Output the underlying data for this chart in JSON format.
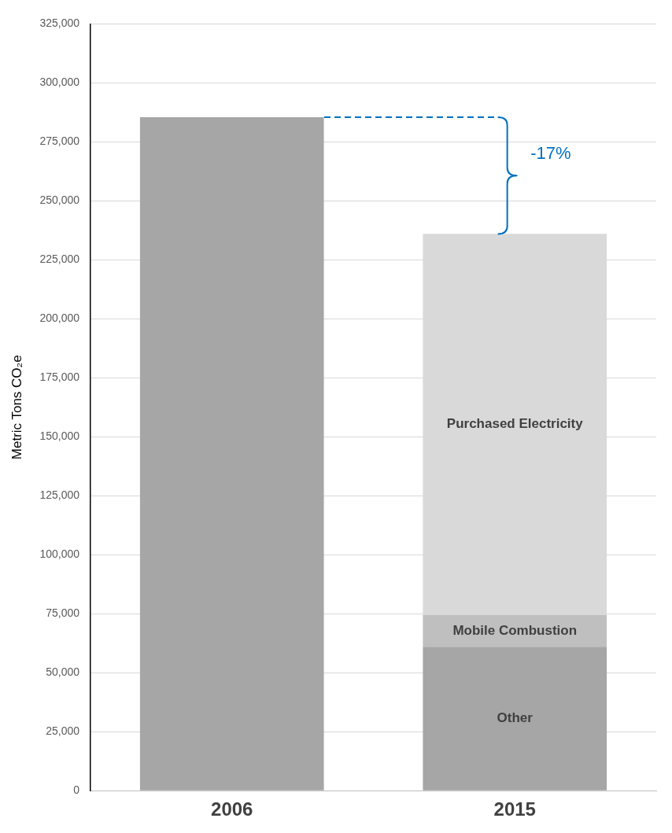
{
  "chart_data": {
    "type": "bar",
    "stacked": true,
    "ylabel": "Metric Tons CO₂e",
    "categories": [
      "2006",
      "2015"
    ],
    "series": [
      {
        "color": "#a6a6a6",
        "values": [
          285500,
          null
        ]
      },
      {
        "name": "Other",
        "color": "#a6a6a6",
        "values": [
          null,
          61000
        ]
      },
      {
        "name": "Mobile Combustion",
        "color": "#bfbfbf",
        "values": [
          null,
          13500
        ]
      },
      {
        "name": "Purchased Electricity",
        "color": "#d9d9d9",
        "values": [
          null,
          161500
        ]
      }
    ],
    "ylim": [
      0,
      325000
    ],
    "yticks": [
      {
        "value": 0,
        "label": "0"
      },
      {
        "value": 25000,
        "label": "25,000"
      },
      {
        "value": 50000,
        "label": "50,000"
      },
      {
        "value": 75000,
        "label": "75,000"
      },
      {
        "value": 100000,
        "label": "100,000"
      },
      {
        "value": 125000,
        "label": "125,000"
      },
      {
        "value": 150000,
        "label": "150,000"
      },
      {
        "value": 175000,
        "label": "175,000"
      },
      {
        "value": 200000,
        "label": "200,000"
      },
      {
        "value": 225000,
        "label": "225,000"
      },
      {
        "value": 250000,
        "label": "250,000"
      },
      {
        "value": 275000,
        "label": "275,000"
      },
      {
        "value": 300000,
        "label": "300,000"
      },
      {
        "value": 325000,
        "label": "325,000"
      }
    ],
    "grid": "y",
    "legend": false,
    "annotations": [
      "-17%"
    ]
  }
}
